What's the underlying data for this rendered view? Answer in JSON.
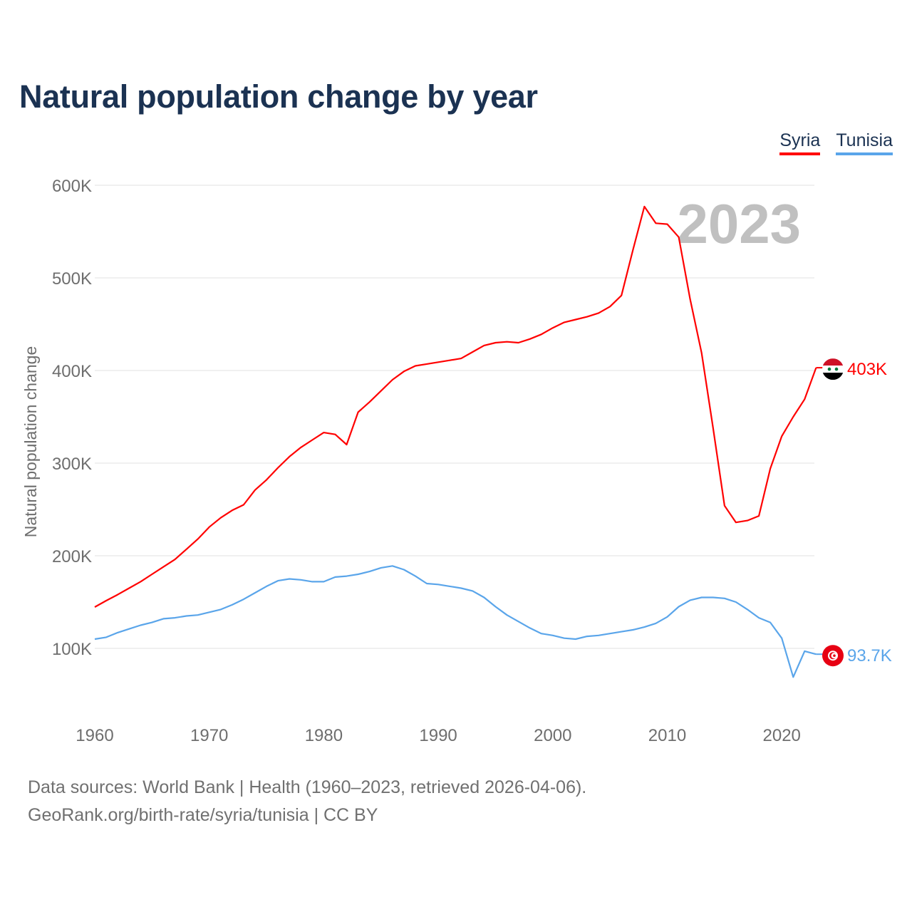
{
  "title": "Natural population change by year",
  "legend": [
    {
      "label": "Syria",
      "color": "#ff0000"
    },
    {
      "label": "Tunisia",
      "color": "#5aa5ea"
    }
  ],
  "year_watermark": "2023",
  "source_lines": [
    "Data sources: World Bank | Health (1960–2023, retrieved 2026-04-06).",
    "GeoRank.org/birth-rate/syria/tunisia | CC BY"
  ],
  "chart_data": {
    "type": "line",
    "title": "Natural population change by year",
    "xlabel": "",
    "ylabel": "Natural population change",
    "xlim": [
      1960,
      2023
    ],
    "ylim": [
      30000,
      600000
    ],
    "x_ticks": [
      1960,
      1970,
      1980,
      1990,
      2000,
      2010,
      2020
    ],
    "x_tick_labels": [
      "1960",
      "1970",
      "1980",
      "1990",
      "2000",
      "2010",
      "2020"
    ],
    "y_ticks": [
      100000,
      200000,
      300000,
      400000,
      500000,
      600000
    ],
    "y_tick_labels": [
      "100K",
      "200K",
      "300K",
      "400K",
      "500K",
      "600K"
    ],
    "grid": true,
    "legend_position": "top-right",
    "x": [
      1960,
      1961,
      1962,
      1963,
      1964,
      1965,
      1966,
      1967,
      1968,
      1969,
      1970,
      1971,
      1972,
      1973,
      1974,
      1975,
      1976,
      1977,
      1978,
      1979,
      1980,
      1981,
      1982,
      1983,
      1984,
      1985,
      1986,
      1987,
      1988,
      1989,
      1990,
      1991,
      1992,
      1993,
      1994,
      1995,
      1996,
      1997,
      1998,
      1999,
      2000,
      2001,
      2002,
      2003,
      2004,
      2005,
      2006,
      2007,
      2008,
      2009,
      2010,
      2011,
      2012,
      2013,
      2014,
      2015,
      2016,
      2017,
      2018,
      2019,
      2020,
      2021,
      2022,
      2023
    ],
    "series": [
      {
        "name": "Syria",
        "end_label": "403K",
        "flag": "syria-flag",
        "values": [
          144600,
          151500,
          158000,
          165000,
          172000,
          180000,
          188000,
          196000,
          207000,
          218000,
          231000,
          241000,
          249000,
          255000,
          271000,
          282000,
          295000,
          307000,
          317000,
          325000,
          333000,
          331000,
          320000,
          355000,
          366000,
          378000,
          390000,
          399000,
          405000,
          407000,
          409000,
          411000,
          413000,
          420000,
          427000,
          430000,
          431000,
          430000,
          434000,
          439000,
          446000,
          452000,
          455000,
          458000,
          462000,
          469000,
          481000,
          530000,
          577000,
          559000,
          558000,
          544000,
          477000,
          419000,
          338000,
          254000,
          236000,
          238000,
          243000,
          294000,
          329000,
          350000,
          369000,
          403000
        ]
      },
      {
        "name": "Tunisia",
        "end_label": "93.7K",
        "flag": "tunisia-flag",
        "values": [
          110000,
          112000,
          117000,
          121000,
          125000,
          128000,
          132000,
          133000,
          135000,
          136000,
          139000,
          142000,
          147000,
          153000,
          160000,
          167000,
          173000,
          175000,
          174000,
          172000,
          172000,
          177000,
          178000,
          180000,
          183000,
          187000,
          189000,
          185000,
          178000,
          170000,
          169000,
          167000,
          165000,
          162000,
          155000,
          145000,
          136000,
          129000,
          122000,
          116000,
          114000,
          111000,
          110000,
          113000,
          114000,
          116000,
          118000,
          120000,
          123000,
          127000,
          134000,
          145000,
          152000,
          155000,
          155000,
          154000,
          150000,
          142000,
          133000,
          128000,
          111000,
          69000,
          97000,
          93700
        ]
      }
    ]
  }
}
